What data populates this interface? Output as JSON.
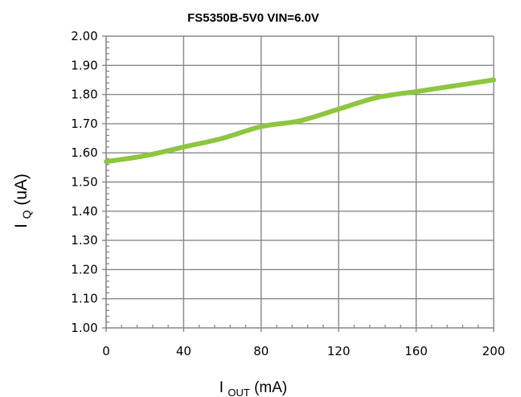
{
  "chart_data": {
    "type": "line",
    "title": "FS5350B-5V0 VIN=6.0V",
    "xlabel": {
      "main": "I",
      "subscript": "OUT",
      "suffix": "(mA)"
    },
    "ylabel": {
      "main": "I",
      "subscript": "Q",
      "suffix": "(uA)"
    },
    "xlim": [
      0,
      200
    ],
    "ylim": [
      1.0,
      2.0
    ],
    "x_ticks": [
      0,
      40,
      80,
      120,
      160,
      200
    ],
    "x_tick_labels": [
      "0",
      "40",
      "80",
      "120",
      "160",
      "200"
    ],
    "y_ticks": [
      1.0,
      1.1,
      1.2,
      1.3,
      1.4,
      1.5,
      1.6,
      1.7,
      1.8,
      1.9,
      2.0
    ],
    "y_tick_labels": [
      "1.00",
      "1.10",
      "1.20",
      "1.30",
      "1.40",
      "1.50",
      "1.60",
      "1.70",
      "1.80",
      "1.90",
      "2.00"
    ],
    "grid": true,
    "legend": "none",
    "series": [
      {
        "x": [
          0,
          20,
          40,
          60,
          80,
          100,
          120,
          140,
          160,
          180,
          200
        ],
        "y": [
          1.57,
          1.59,
          1.62,
          1.65,
          1.69,
          1.71,
          1.75,
          1.79,
          1.81,
          1.83,
          1.85
        ],
        "color": "#8dc63f"
      }
    ]
  }
}
